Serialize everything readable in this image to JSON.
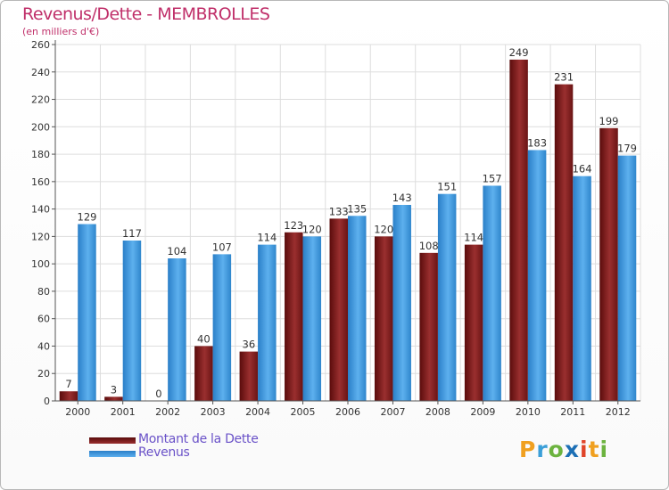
{
  "header": {
    "title": "Revenus/Dette - MEMBROLLES",
    "subtitle": "(en milliers d'€)"
  },
  "chart_data": {
    "type": "bar",
    "categories": [
      "2000",
      "2001",
      "2002",
      "2003",
      "2004",
      "2005",
      "2006",
      "2007",
      "2008",
      "2009",
      "2010",
      "2011",
      "2012"
    ],
    "series": [
      {
        "name": "Montant de la Dette",
        "values": [
          7,
          3,
          0,
          40,
          36,
          123,
          133,
          120,
          108,
          114,
          249,
          231,
          199
        ],
        "color": "#7a1a1a"
      },
      {
        "name": "Revenus",
        "values": [
          129,
          117,
          104,
          107,
          114,
          120,
          135,
          143,
          151,
          157,
          183,
          164,
          179
        ],
        "color": "#3d96dc"
      }
    ],
    "ylim": [
      0,
      260
    ],
    "yticks": [
      0,
      20,
      40,
      60,
      80,
      100,
      120,
      140,
      160,
      180,
      200,
      220,
      240,
      260
    ],
    "grid": true,
    "legend_position": "bottom-left"
  },
  "legend": {
    "items": [
      {
        "label": "Montant de la Dette",
        "color": "#7a1a1a"
      },
      {
        "label": "Revenus",
        "color": "#3d96dc"
      }
    ]
  },
  "logo": {
    "letters": [
      "P",
      "r",
      "o",
      "x",
      "i",
      "t",
      "i"
    ],
    "colors": [
      "#f0a020",
      "#3b9fd8",
      "#6cb33f",
      "#1c6fb5",
      "#e0452a",
      "#f0a020",
      "#6cb33f"
    ]
  }
}
